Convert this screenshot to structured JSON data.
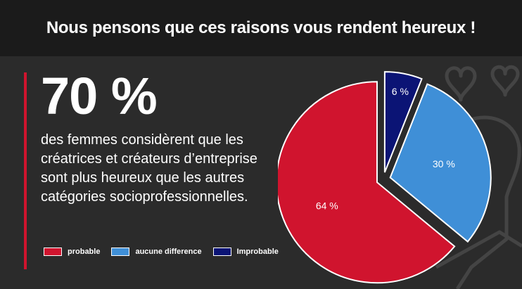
{
  "header": {
    "title": "Nous pensons que ces raisons vous rendent heureux !"
  },
  "main": {
    "stat": "70 %",
    "description": "des femmes considèrent que les créatrices et créateurs d’entreprise sont plus heureux que les autres catégories socioprofessionnelles."
  },
  "colors": {
    "background": "#2b2b2b",
    "title_bar": "#1b1b1b",
    "accent": "#d0142e",
    "probable": "#d0142e",
    "aucune_difference": "#3f8fd7",
    "improbable": "#0b1475"
  },
  "decorations": [
    "heart-icon",
    "heart-icon",
    "person-icon"
  ],
  "chart_data": {
    "type": "pie",
    "title": "",
    "legend_position": "bottom-left",
    "slices": [
      {
        "label": "probable",
        "value": 64,
        "display": "64 %",
        "color": "#d0142e"
      },
      {
        "label": "aucune difference",
        "value": 30,
        "display": "30 %",
        "color": "#3f8fd7"
      },
      {
        "label": "Improbable",
        "value": 6,
        "display": "6 %",
        "color": "#0b1475"
      }
    ]
  }
}
